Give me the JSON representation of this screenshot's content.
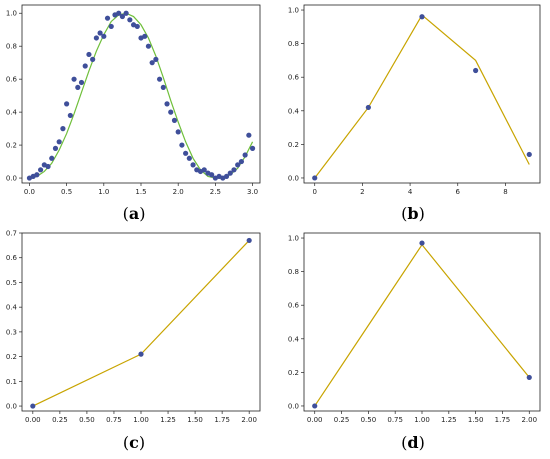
{
  "colors": {
    "fit_line": "#c8a400",
    "fit_line_a": "#6fbf3a",
    "points": "#3f4f9a",
    "axis": "#222222"
  },
  "captions": [
    {
      "open": "(",
      "letter": "a",
      "close": ")"
    },
    {
      "open": "(",
      "letter": "b",
      "close": ")"
    },
    {
      "open": "(",
      "letter": "c",
      "close": ")"
    },
    {
      "open": "(",
      "letter": "d",
      "close": ")"
    }
  ],
  "chart_data": [
    {
      "type": "scatter",
      "xlim": [
        -0.1,
        3.1
      ],
      "ylim": [
        -0.03,
        1.05
      ],
      "xticks": [
        "0.0",
        "0.5",
        "1.0",
        "1.5",
        "2.0",
        "2.5",
        "3.0"
      ],
      "yticks": [
        "0.0",
        "0.2",
        "0.4",
        "0.6",
        "0.8",
        "1.0"
      ],
      "line": {
        "x": [
          0.0,
          0.1,
          0.2,
          0.3,
          0.4,
          0.5,
          0.6,
          0.7,
          0.8,
          0.9,
          1.0,
          1.1,
          1.2,
          1.3,
          1.4,
          1.5,
          1.6,
          1.7,
          1.8,
          1.9,
          2.0,
          2.1,
          2.2,
          2.3,
          2.4,
          2.5,
          2.6,
          2.7,
          2.8,
          2.9,
          3.0
        ],
        "y": [
          0.0,
          0.01,
          0.04,
          0.09,
          0.17,
          0.27,
          0.39,
          0.52,
          0.65,
          0.77,
          0.87,
          0.95,
          0.99,
          1.0,
          0.98,
          0.93,
          0.85,
          0.74,
          0.61,
          0.47,
          0.34,
          0.22,
          0.12,
          0.05,
          0.01,
          0.0,
          0.0,
          0.02,
          0.06,
          0.13,
          0.22
        ]
      },
      "points": {
        "x": [
          0.0,
          0.05,
          0.1,
          0.15,
          0.2,
          0.25,
          0.3,
          0.35,
          0.4,
          0.45,
          0.5,
          0.55,
          0.6,
          0.65,
          0.7,
          0.75,
          0.8,
          0.85,
          0.9,
          0.95,
          1.0,
          1.05,
          1.1,
          1.15,
          1.2,
          1.25,
          1.3,
          1.35,
          1.4,
          1.45,
          1.5,
          1.55,
          1.6,
          1.65,
          1.7,
          1.75,
          1.8,
          1.85,
          1.9,
          1.95,
          2.0,
          2.05,
          2.1,
          2.15,
          2.2,
          2.25,
          2.3,
          2.35,
          2.4,
          2.45,
          2.5,
          2.55,
          2.6,
          2.65,
          2.7,
          2.75,
          2.8,
          2.85,
          2.9,
          2.95,
          3.0
        ],
        "y": [
          0.0,
          0.01,
          0.02,
          0.05,
          0.08,
          0.07,
          0.12,
          0.18,
          0.22,
          0.3,
          0.45,
          0.38,
          0.6,
          0.55,
          0.58,
          0.68,
          0.75,
          0.72,
          0.85,
          0.88,
          0.86,
          0.97,
          0.92,
          0.99,
          1.0,
          0.98,
          1.0,
          0.96,
          0.93,
          0.92,
          0.85,
          0.86,
          0.8,
          0.7,
          0.72,
          0.6,
          0.55,
          0.45,
          0.4,
          0.35,
          0.28,
          0.2,
          0.15,
          0.12,
          0.08,
          0.05,
          0.04,
          0.05,
          0.03,
          0.02,
          0.0,
          0.01,
          0.0,
          0.01,
          0.03,
          0.05,
          0.08,
          0.1,
          0.14,
          0.26,
          0.18
        ]
      }
    },
    {
      "type": "line",
      "xlim": [
        -0.45,
        9.45
      ],
      "ylim": [
        -0.03,
        1.03
      ],
      "xticks": [
        "0",
        "2",
        "4",
        "6",
        "8"
      ],
      "yticks": [
        "0.0",
        "0.2",
        "0.4",
        "0.6",
        "0.8",
        "1.0"
      ],
      "line": {
        "x": [
          0,
          2.25,
          4.5,
          6.75,
          9
        ],
        "y": [
          0.0,
          0.42,
          0.97,
          0.7,
          0.08
        ]
      },
      "points": {
        "x": [
          0,
          2.25,
          4.5,
          6.75,
          9
        ],
        "y": [
          0.0,
          0.42,
          0.96,
          0.64,
          0.14
        ]
      }
    },
    {
      "type": "line",
      "xlim": [
        -0.1,
        2.1
      ],
      "ylim": [
        -0.02,
        0.7
      ],
      "xticks": [
        "0.00",
        "0.25",
        "0.50",
        "0.75",
        "1.00",
        "1.25",
        "1.50",
        "1.75",
        "2.00"
      ],
      "yticks": [
        "0.0",
        "0.1",
        "0.2",
        "0.3",
        "0.4",
        "0.5",
        "0.6",
        "0.7"
      ],
      "line": {
        "x": [
          0,
          1,
          2
        ],
        "y": [
          0.0,
          0.21,
          0.67
        ]
      },
      "points": {
        "x": [
          0,
          1,
          2
        ],
        "y": [
          0.0,
          0.21,
          0.67
        ]
      }
    },
    {
      "type": "line",
      "xlim": [
        -0.1,
        2.1
      ],
      "ylim": [
        -0.03,
        1.03
      ],
      "xticks": [
        "0.00",
        "0.25",
        "0.50",
        "0.75",
        "1.00",
        "1.25",
        "1.50",
        "1.75",
        "2.00"
      ],
      "yticks": [
        "0.0",
        "0.2",
        "0.4",
        "0.6",
        "0.8",
        "1.0"
      ],
      "line": {
        "x": [
          0,
          1,
          2
        ],
        "y": [
          0.0,
          0.96,
          0.17
        ]
      },
      "points": {
        "x": [
          0,
          1,
          2
        ],
        "y": [
          0.0,
          0.97,
          0.17
        ]
      }
    }
  ]
}
